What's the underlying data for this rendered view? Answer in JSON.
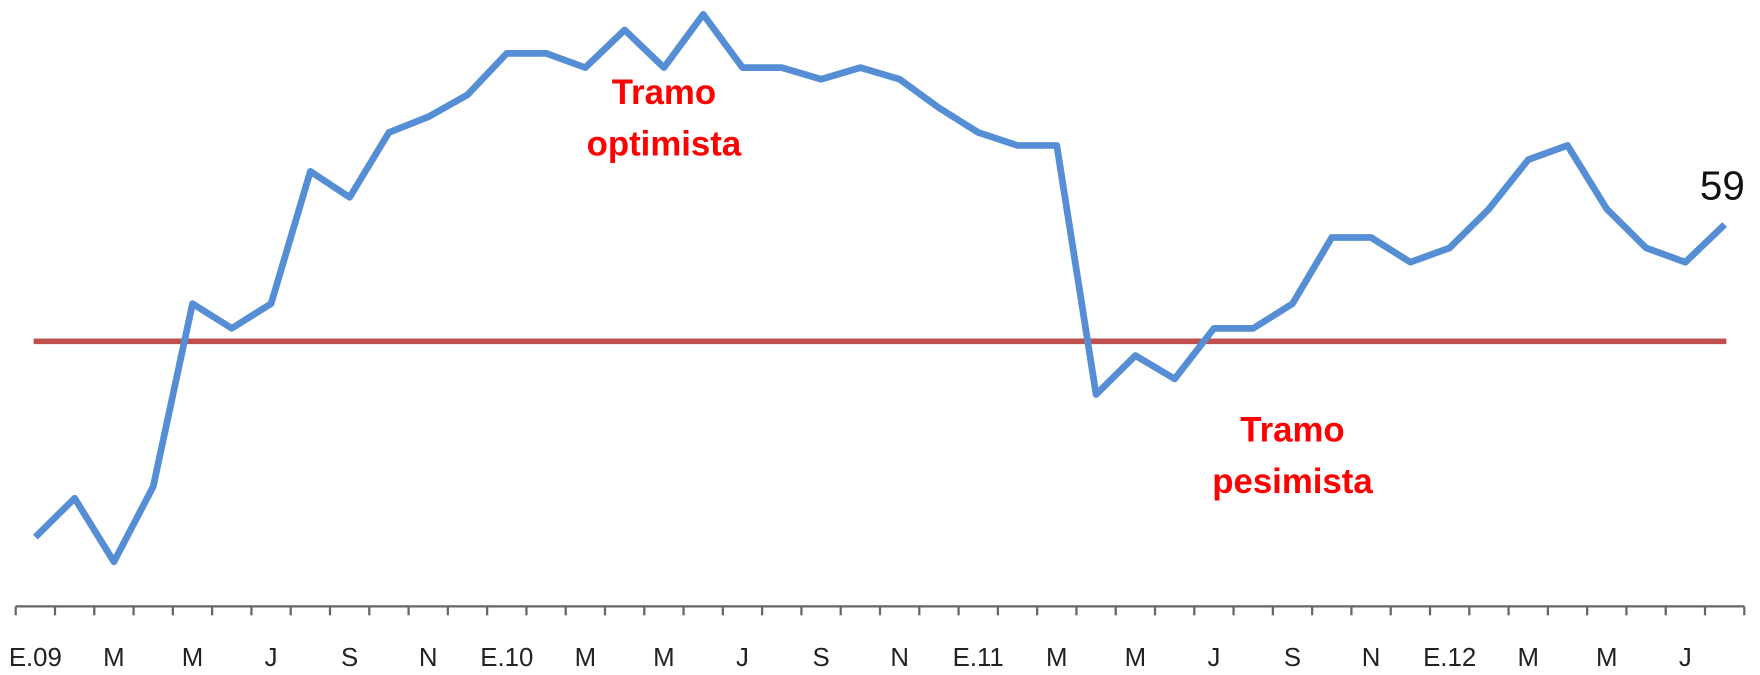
{
  "chart_data": {
    "type": "line",
    "categories": [
      "E.09",
      null,
      "M",
      null,
      "M",
      null,
      "J",
      null,
      "S",
      null,
      "N",
      null,
      "E.10",
      null,
      "M",
      null,
      "M",
      null,
      "J",
      null,
      "S",
      null,
      "N",
      null,
      "E.11",
      null,
      "M",
      null,
      "M",
      null,
      "J",
      null,
      "S",
      null,
      "N",
      null,
      "E.12",
      null,
      "M",
      null,
      "M",
      null,
      "J",
      null
    ],
    "series": [
      {
        "color": "#558ed5",
        "values": [
          34.9,
          37.9,
          33,
          38.8,
          52.9,
          51,
          52.9,
          63.1,
          61.1,
          66.1,
          67.3,
          69,
          72.2,
          72.2,
          71.1,
          74,
          71.1,
          75.2,
          71.1,
          71.1,
          70.2,
          71.1,
          70.2,
          68,
          66.1,
          65.1,
          65.1,
          45.9,
          48.9,
          47.1,
          51,
          51,
          52.9,
          58,
          58,
          56.1,
          57.2,
          60.2,
          64,
          65.1,
          60.2,
          57.2,
          56.1,
          59
        ]
      }
    ],
    "ylim": [
      30,
      80
    ],
    "reference_line": {
      "value": 50,
      "color": "#c0504d"
    },
    "annotations": [
      {
        "lines": [
          "Tramo",
          "optimista"
        ],
        "at": [
          16,
          69
        ]
      },
      {
        "lines": [
          "Tramo",
          "pesimista"
        ],
        "at": [
          32,
          43
        ]
      }
    ]
  }
}
